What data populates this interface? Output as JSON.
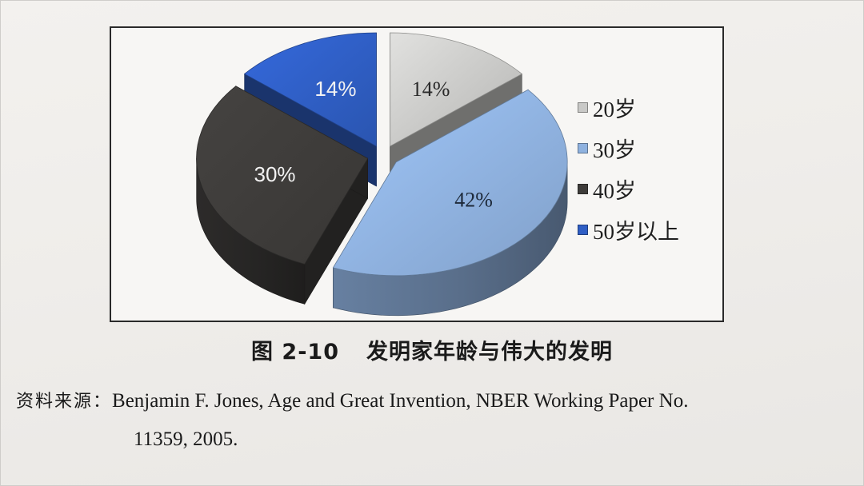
{
  "chart_data": {
    "type": "pie",
    "categories": [
      "20岁",
      "30岁",
      "40岁",
      "50岁以上"
    ],
    "values": [
      14,
      42,
      30,
      14
    ],
    "data_labels": [
      "14%",
      "42%",
      "30%",
      "14%"
    ],
    "colors": [
      "#c9c9c7",
      "#8fb2df",
      "#3e3c3a",
      "#2f5ec4"
    ],
    "legend_position": "right",
    "style": "3d-exploded"
  },
  "caption": {
    "number": "图 2-10",
    "title": "发明家年龄与伟大的发明"
  },
  "source": {
    "label": "资料来源：",
    "line1": "Benjamin F. Jones, Age and Great Invention, NBER Working Paper No.",
    "line2": "11359, 2005."
  }
}
